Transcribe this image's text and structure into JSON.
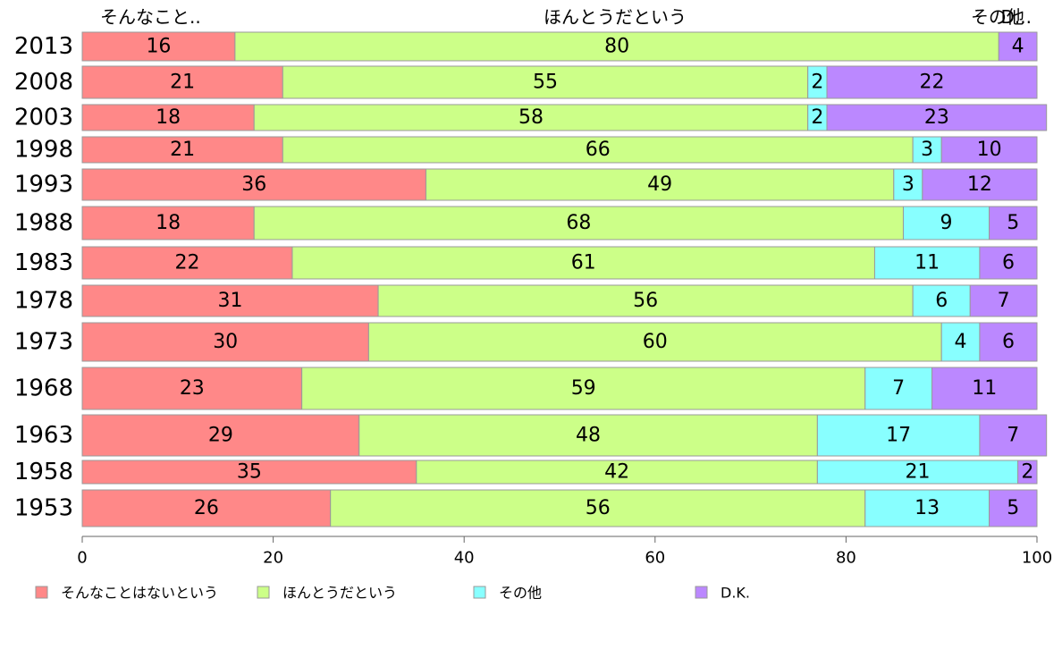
{
  "chart_data": {
    "type": "bar",
    "orientation": "horizontal",
    "stacked": true,
    "categories": [
      "2013",
      "2008",
      "2003",
      "1998",
      "1993",
      "1988",
      "1983",
      "1978",
      "1973",
      "1968",
      "1963",
      "1958",
      "1953"
    ],
    "series": [
      {
        "name": "そんなことはないという",
        "color": "#ff8888",
        "values": [
          16,
          21,
          18,
          21,
          36,
          18,
          22,
          31,
          30,
          23,
          29,
          35,
          26
        ]
      },
      {
        "name": "ほんとうだという",
        "color": "#ccff88",
        "values": [
          80,
          55,
          58,
          66,
          49,
          68,
          61,
          56,
          60,
          59,
          48,
          42,
          56
        ]
      },
      {
        "name": "その他",
        "color": "#88ffff",
        "values": [
          0,
          2,
          2,
          3,
          3,
          9,
          11,
          6,
          4,
          7,
          17,
          21,
          13
        ]
      },
      {
        "name": "D.K.",
        "color": "#bb88ff",
        "values": [
          4,
          22,
          23,
          10,
          12,
          5,
          6,
          7,
          6,
          11,
          7,
          2,
          5
        ]
      }
    ],
    "top_labels": [
      "そんなこと..",
      "ほんとうだという",
      "その他",
      "D..."
    ],
    "xlim": [
      0,
      100
    ],
    "xticks": [
      "0",
      "20",
      "40",
      "60",
      "80",
      "100"
    ],
    "title": "",
    "xlabel": "",
    "ylabel": "",
    "legend_position": "bottom",
    "grid": false
  }
}
